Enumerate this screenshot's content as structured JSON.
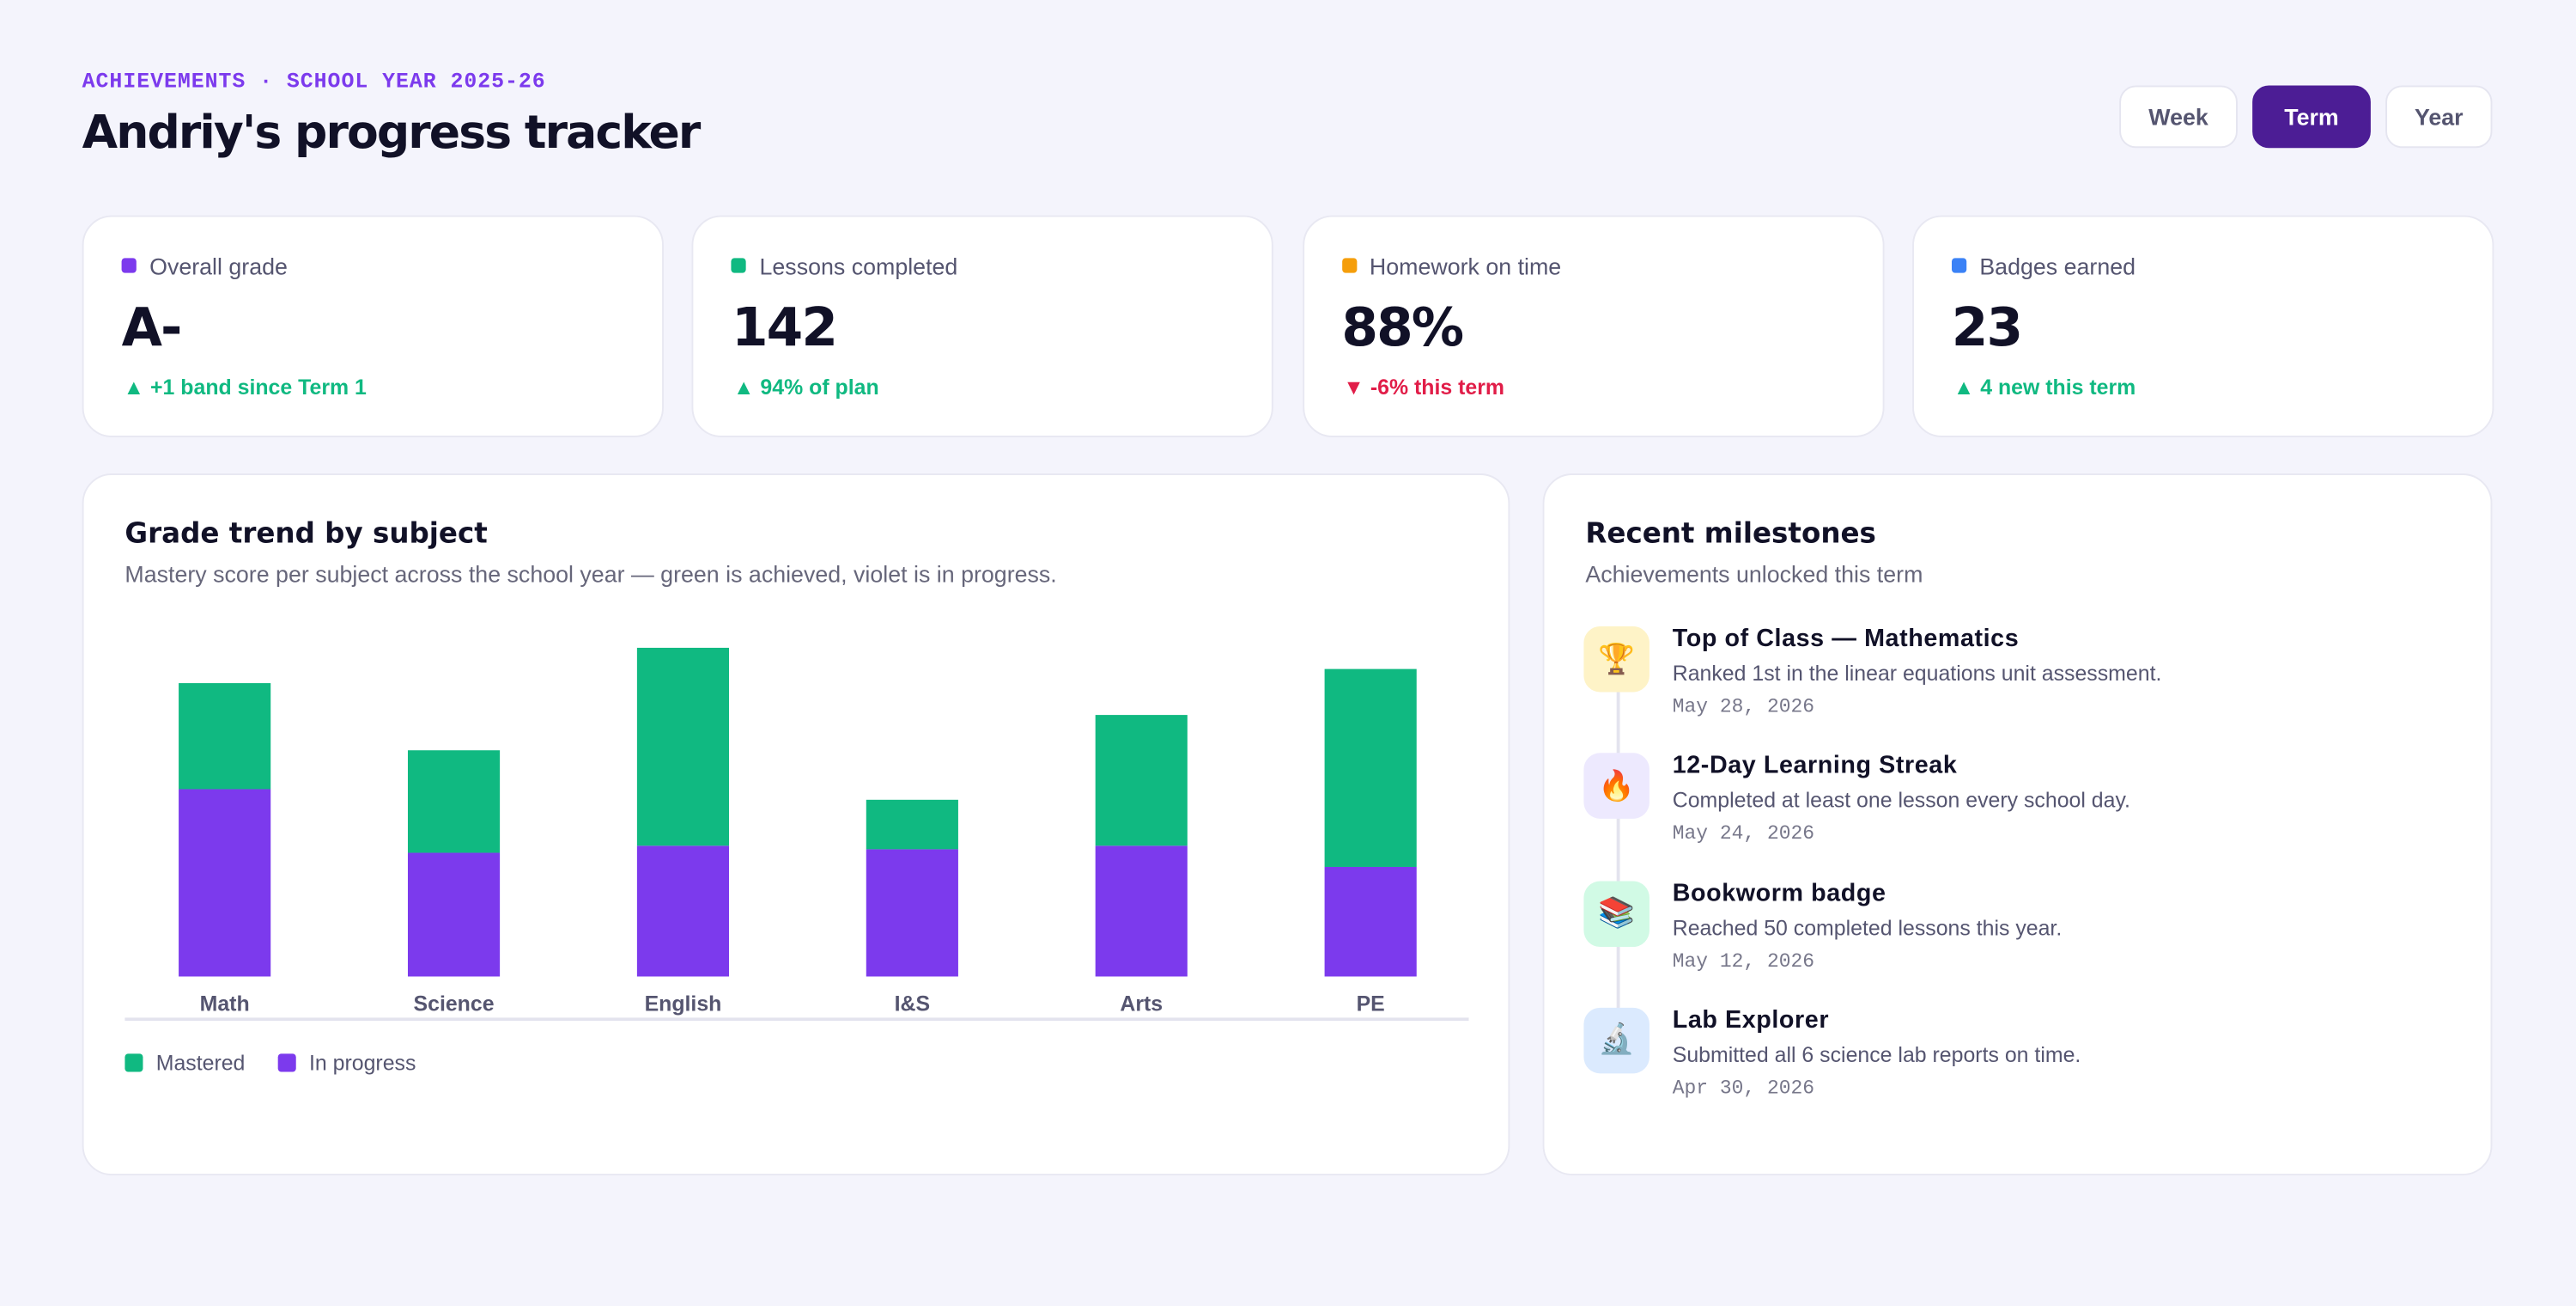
{
  "header": {
    "eyebrow": "ACHIEVEMENTS · SCHOOL YEAR 2025-26",
    "title": "Andriy's progress tracker"
  },
  "periods": {
    "options": [
      "Week",
      "Term",
      "Year"
    ],
    "selected": "Term"
  },
  "kpis": [
    {
      "label": "Overall grade",
      "value": "A-",
      "delta": "▲ +1 band since Term 1",
      "trend": "up",
      "color": "#7c3aed"
    },
    {
      "label": "Lessons completed",
      "value": "142",
      "delta": "▲ 94% of plan",
      "trend": "up",
      "color": "#10b981"
    },
    {
      "label": "Homework on time",
      "value": "88%",
      "delta": "▼ -6% this term",
      "trend": "down",
      "color": "#f59e0b"
    },
    {
      "label": "Badges earned",
      "value": "23",
      "delta": "▲ 4 new this term",
      "trend": "up",
      "color": "#3b82f6"
    }
  ],
  "chart_data": {
    "type": "stacked-bar",
    "title": "Grade trend by subject",
    "subtitle": "Mastery score per subject across the school year — green is achieved, violet is in progress.",
    "categories": [
      "Math",
      "Science",
      "English",
      "I&S",
      "Arts",
      "PE"
    ],
    "series": [
      {
        "name": "Mastered",
        "color": "#10b981",
        "values": [
          30,
          29,
          56,
          14,
          37,
          56
        ]
      },
      {
        "name": "In progress",
        "color": "#7c3aed",
        "values": [
          53,
          35,
          37,
          36,
          37,
          31
        ]
      }
    ],
    "ylim": [
      0,
      100
    ]
  },
  "milestones": {
    "title": "Recent milestones",
    "subtitle": "Achievements unlocked this term",
    "items": [
      {
        "icon": "🏆",
        "icon_bg": "#fef3c7",
        "title": "Top of Class — Mathematics",
        "description": "Ranked 1st in the linear equations unit assessment.",
        "date": "May 28, 2026"
      },
      {
        "icon": "🔥",
        "icon_bg": "#ede9fe",
        "title": "12-Day Learning Streak",
        "description": "Completed at least one lesson every school day.",
        "date": "May 24, 2026"
      },
      {
        "icon": "📚",
        "icon_bg": "#d1fae5",
        "title": "Bookworm badge",
        "description": "Reached 50 completed lessons this year.",
        "date": "May 12, 2026"
      },
      {
        "icon": "🔬",
        "icon_bg": "#dbeafe",
        "title": "Lab Explorer",
        "description": "Submitted all 6 science lab reports on time.",
        "date": "Apr 30, 2026"
      }
    ]
  }
}
